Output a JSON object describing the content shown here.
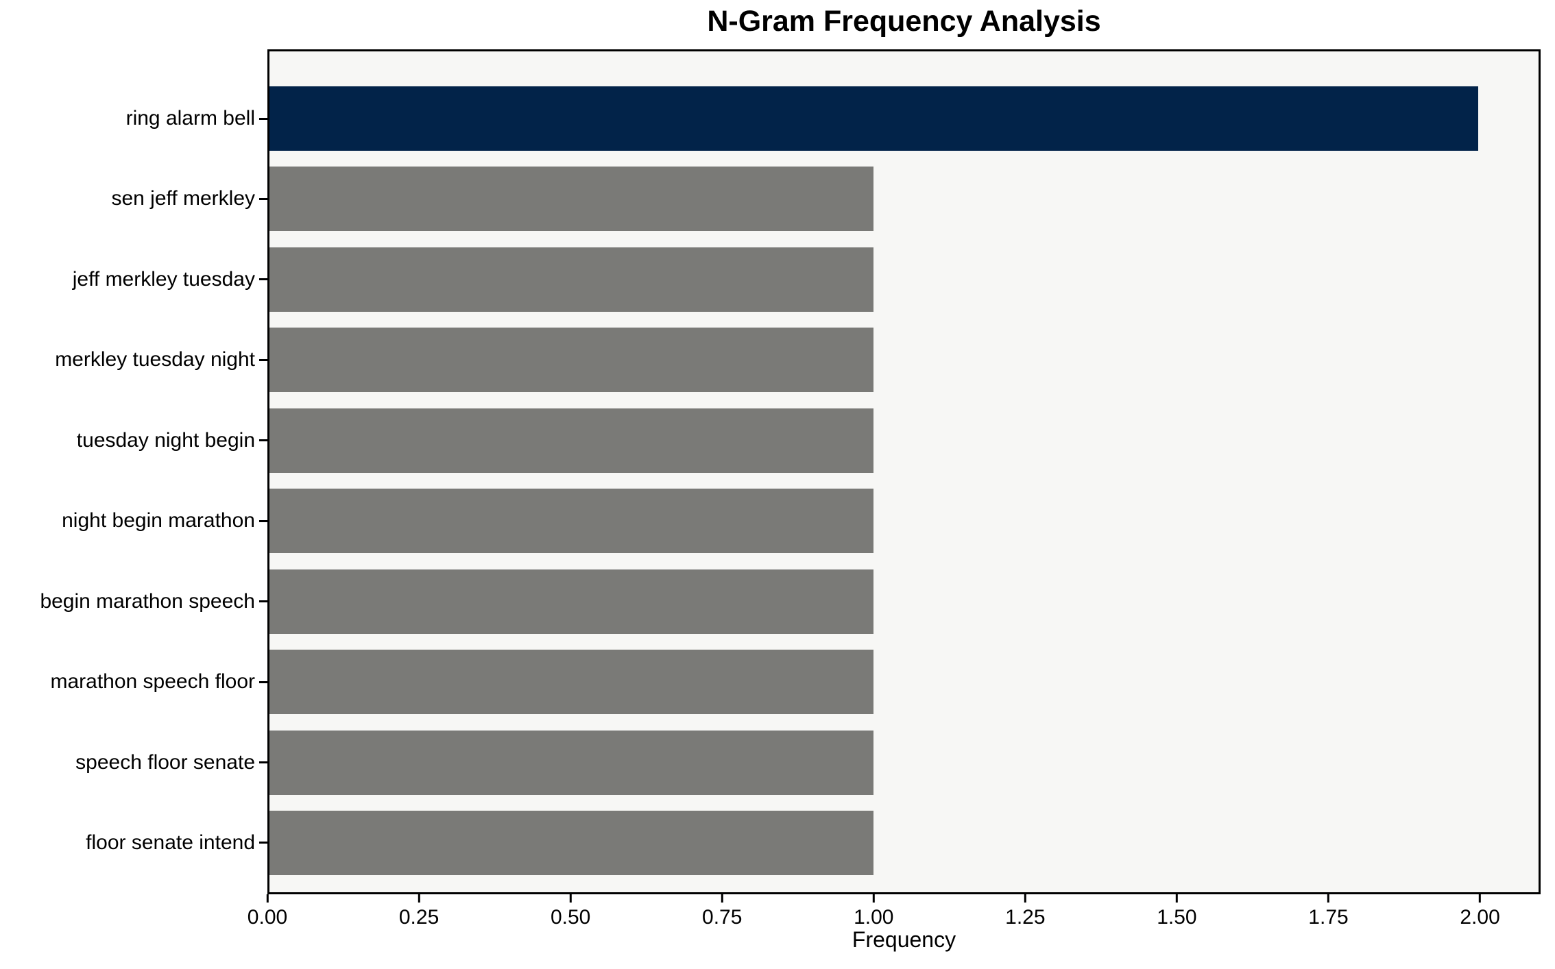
{
  "chart_data": {
    "type": "bar",
    "orientation": "horizontal",
    "title": "N-Gram Frequency Analysis",
    "categories": [
      "ring alarm bell",
      "sen jeff merkley",
      "jeff merkley tuesday",
      "merkley tuesday night",
      "tuesday night begin",
      "night begin marathon",
      "begin marathon speech",
      "marathon speech floor",
      "speech floor senate",
      "floor senate intend"
    ],
    "values": [
      2,
      1,
      1,
      1,
      1,
      1,
      1,
      1,
      1,
      1
    ],
    "highlight_index": 0,
    "xlabel": "Frequency",
    "ylabel": "",
    "xlim": [
      0,
      2.1
    ],
    "xticks": [
      {
        "value": 0.0,
        "label": "0.00"
      },
      {
        "value": 0.25,
        "label": "0.25"
      },
      {
        "value": 0.5,
        "label": "0.50"
      },
      {
        "value": 0.75,
        "label": "0.75"
      },
      {
        "value": 1.0,
        "label": "1.00"
      },
      {
        "value": 1.25,
        "label": "1.25"
      },
      {
        "value": 1.5,
        "label": "1.50"
      },
      {
        "value": 1.75,
        "label": "1.75"
      },
      {
        "value": 2.0,
        "label": "2.00"
      }
    ],
    "grid": false,
    "legend": null,
    "colors": {
      "highlight_bar": "#022349",
      "default_bar": "#7a7a77",
      "plot_background": "#f7f7f5",
      "figure_background": "#ffffff",
      "axis": "#000000",
      "text": "#000000"
    }
  }
}
